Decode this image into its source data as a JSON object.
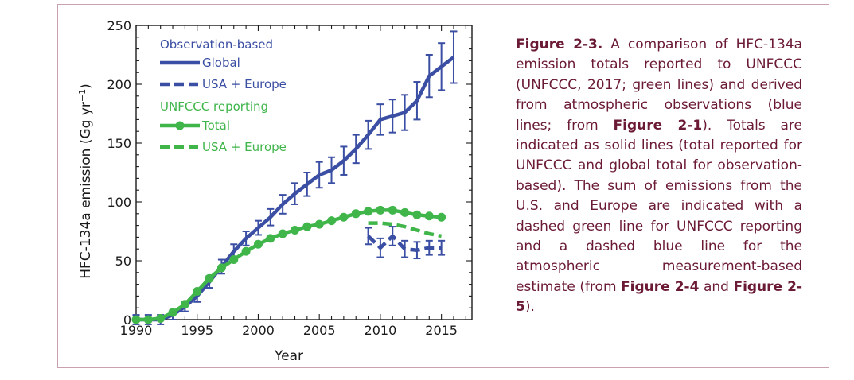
{
  "chart_data": {
    "type": "line",
    "xlabel": "Year",
    "ylabel": "HFC-134a emission (Gg yr",
    "ylabel_sup": "−1",
    "ylabel_tail": ")",
    "xlim": [
      1990,
      2017.5
    ],
    "ylim": [
      0,
      250
    ],
    "x_ticks": [
      1990,
      1995,
      2000,
      2005,
      2010,
      2015
    ],
    "y_ticks": [
      0,
      50,
      100,
      150,
      200,
      250
    ],
    "grid": false,
    "legend_position": "top-left",
    "legend_groups": [
      {
        "title": "Observation-based",
        "color": "#3a4ea3"
      },
      {
        "title": "UNFCCC reporting",
        "color": "#3fb54a"
      }
    ],
    "series": [
      {
        "name": "Global",
        "group": "Observation-based",
        "color": "#3a4ea3",
        "style": "solid",
        "markers": false,
        "error_bars": true,
        "x": [
          1990,
          1991,
          1992,
          1993,
          1994,
          1995,
          1996,
          1997,
          1998,
          1999,
          2000,
          2001,
          2002,
          2003,
          2004,
          2005,
          2006,
          2007,
          2008,
          2009,
          2010,
          2011,
          2012,
          2013,
          2014,
          2015,
          2016
        ],
        "y": [
          0,
          0,
          0,
          4,
          11,
          20,
          32,
          45,
          58,
          69,
          78,
          87,
          98,
          107,
          115,
          123,
          127,
          135,
          145,
          157,
          170,
          173,
          176,
          186,
          207,
          215,
          223
        ],
        "err": [
          4,
          4,
          4,
          4,
          4,
          5,
          5,
          6,
          6,
          6,
          6,
          7,
          8,
          9,
          10,
          11,
          11,
          12,
          12,
          12,
          13,
          14,
          15,
          16,
          18,
          20,
          22
        ]
      },
      {
        "name": "USA + Europe",
        "group": "Observation-based",
        "color": "#3a4ea3",
        "style": "dashed",
        "markers": false,
        "error_bars": true,
        "x": [
          2009,
          2010,
          2011,
          2012,
          2013,
          2014,
          2015
        ],
        "y": [
          71,
          61,
          71,
          60,
          59,
          61,
          61
        ],
        "err": [
          7,
          8,
          8,
          7,
          7,
          6,
          6
        ]
      },
      {
        "name": "Total",
        "group": "UNFCCC reporting",
        "color": "#3fb54a",
        "style": "solid",
        "markers": true,
        "error_bars": false,
        "x": [
          1990,
          1991,
          1992,
          1993,
          1994,
          1995,
          1996,
          1997,
          1998,
          1999,
          2000,
          2001,
          2002,
          2003,
          2004,
          2005,
          2006,
          2007,
          2008,
          2009,
          2010,
          2011,
          2012,
          2013,
          2014,
          2015
        ],
        "y": [
          0,
          0,
          1,
          6,
          13,
          24,
          35,
          44,
          51,
          58,
          64,
          69,
          73,
          76,
          79,
          81,
          84,
          87,
          90,
          92,
          93,
          93,
          91,
          89,
          88,
          87
        ]
      },
      {
        "name": "USA + Europe",
        "group": "UNFCCC reporting",
        "color": "#3fb54a",
        "style": "dashed",
        "markers": false,
        "error_bars": false,
        "x": [
          2009,
          2010,
          2011,
          2012,
          2013,
          2014,
          2015
        ],
        "y": [
          82,
          82,
          81,
          79,
          76,
          73,
          71
        ]
      }
    ]
  },
  "caption": {
    "fig_label": "Figure 2-3.",
    "t1": " A comparison of HFC-134a emission totals reported to UNFCCC (UNFCCC, 2017; green lines) and derived from atmospheric observations (blue lines; from ",
    "ref1": "Figure 2-1",
    "t2": "). Totals are indicated as solid lines (total reported for UNFCCC and global total for observation-based). The sum of emissions from the U.S. and Europe are indicated with a dashed green line for UNFCCC reporting and a dashed blue line for the atmospheric measurement-based estimate (from ",
    "ref2": "Figure 2-4",
    "t3": " and ",
    "ref3": "Figure 2-5",
    "t4": ")."
  }
}
